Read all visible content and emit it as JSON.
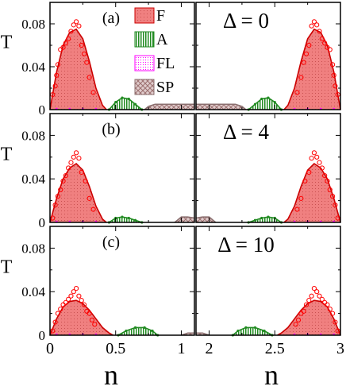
{
  "chart_data": {
    "type": "area",
    "y_axis_label": "T",
    "x_axis_label": "n",
    "ylim": [
      0,
      0.1
    ],
    "y_ticks": [
      "0",
      "0.04",
      "0.08"
    ],
    "x_ticks_left": [
      "0",
      "0.5",
      "1"
    ],
    "x_ticks_right": [
      "2",
      "2.5",
      "3"
    ],
    "xlim_left": [
      0,
      1.1
    ],
    "xlim_right": [
      1.9,
      3.0
    ],
    "legend": [
      {
        "name": "F",
        "color": "#f08080"
      },
      {
        "name": "A",
        "color": "#228b22"
      },
      {
        "name": "FL",
        "color": "#ff00ff"
      },
      {
        "name": "SP",
        "color": "#bc8f8f"
      }
    ],
    "rows": [
      {
        "panel_label": "(a)",
        "delta_label": "Δ = 0",
        "F_curve_left": [
          [
            0,
            0
          ],
          [
            0.05,
            0.035
          ],
          [
            0.1,
            0.06
          ],
          [
            0.15,
            0.072
          ],
          [
            0.2,
            0.075
          ],
          [
            0.25,
            0.066
          ],
          [
            0.3,
            0.045
          ],
          [
            0.35,
            0.02
          ],
          [
            0.4,
            0.004
          ],
          [
            0.43,
            0
          ]
        ],
        "A_curve_left": [
          [
            0.45,
            0
          ],
          [
            0.5,
            0.007
          ],
          [
            0.55,
            0.011
          ],
          [
            0.6,
            0.01
          ],
          [
            0.65,
            0.005
          ],
          [
            0.7,
            0
          ]
        ],
        "SP_curve_left": [
          [
            0.72,
            0
          ],
          [
            0.75,
            0.003
          ],
          [
            0.8,
            0.005
          ],
          [
            0.9,
            0.005
          ],
          [
            1.0,
            0.005
          ],
          [
            1.05,
            0.005
          ],
          [
            1.1,
            0.005
          ]
        ],
        "F_points_left": [
          [
            0.02,
            0.014
          ],
          [
            0.04,
            0.022
          ],
          [
            0.05,
            0.032
          ],
          [
            0.06,
            0.042
          ],
          [
            0.08,
            0.056
          ],
          [
            0.1,
            0.058
          ],
          [
            0.12,
            0.062
          ],
          [
            0.14,
            0.066
          ],
          [
            0.16,
            0.073
          ],
          [
            0.18,
            0.079
          ],
          [
            0.2,
            0.082
          ],
          [
            0.22,
            0.078
          ],
          [
            0.24,
            0.06
          ],
          [
            0.26,
            0.052
          ],
          [
            0.28,
            0.044
          ],
          [
            0.3,
            0.03
          ],
          [
            0.33,
            0.016
          ]
        ],
        "F_curve_right": [
          [
            2.57,
            0
          ],
          [
            2.6,
            0.004
          ],
          [
            2.65,
            0.02
          ],
          [
            2.7,
            0.045
          ],
          [
            2.75,
            0.066
          ],
          [
            2.8,
            0.075
          ],
          [
            2.85,
            0.072
          ],
          [
            2.9,
            0.06
          ],
          [
            2.95,
            0.035
          ],
          [
            3.0,
            0
          ]
        ],
        "A_curve_right": [
          [
            2.3,
            0
          ],
          [
            2.35,
            0.005
          ],
          [
            2.4,
            0.01
          ],
          [
            2.45,
            0.011
          ],
          [
            2.5,
            0.007
          ],
          [
            2.55,
            0
          ]
        ],
        "SP_curve_right": [
          [
            1.9,
            0.005
          ],
          [
            1.95,
            0.005
          ],
          [
            2.0,
            0.005
          ],
          [
            2.1,
            0.005
          ],
          [
            2.2,
            0.005
          ],
          [
            2.25,
            0.003
          ],
          [
            2.28,
            0
          ]
        ],
        "F_points_right": [
          [
            2.67,
            0.016
          ],
          [
            2.7,
            0.03
          ],
          [
            2.72,
            0.044
          ],
          [
            2.74,
            0.052
          ],
          [
            2.76,
            0.06
          ],
          [
            2.78,
            0.078
          ],
          [
            2.8,
            0.082
          ],
          [
            2.82,
            0.079
          ],
          [
            2.84,
            0.073
          ],
          [
            2.86,
            0.066
          ],
          [
            2.88,
            0.062
          ],
          [
            2.9,
            0.058
          ],
          [
            2.92,
            0.056
          ],
          [
            2.94,
            0.042
          ],
          [
            2.95,
            0.032
          ],
          [
            2.96,
            0.022
          ],
          [
            2.98,
            0.014
          ]
        ]
      },
      {
        "panel_label": "(b)",
        "delta_label": "Δ = 4",
        "F_curve_left": [
          [
            0,
            0
          ],
          [
            0.05,
            0.022
          ],
          [
            0.1,
            0.04
          ],
          [
            0.15,
            0.05
          ],
          [
            0.2,
            0.054
          ],
          [
            0.25,
            0.048
          ],
          [
            0.3,
            0.033
          ],
          [
            0.35,
            0.015
          ],
          [
            0.4,
            0.003
          ],
          [
            0.43,
            0
          ]
        ],
        "A_curve_left": [
          [
            0.45,
            0
          ],
          [
            0.5,
            0.004
          ],
          [
            0.55,
            0.005
          ],
          [
            0.6,
            0.004
          ],
          [
            0.65,
            0.002
          ],
          [
            0.7,
            0
          ]
        ],
        "SP_curve_left": [
          [
            0.95,
            0
          ],
          [
            1.0,
            0.005
          ],
          [
            1.05,
            0.005
          ],
          [
            1.1,
            0.004
          ]
        ],
        "F_points_left": [
          [
            0.02,
            0.004
          ],
          [
            0.04,
            0.016
          ],
          [
            0.06,
            0.024
          ],
          [
            0.08,
            0.03
          ],
          [
            0.1,
            0.038
          ],
          [
            0.12,
            0.043
          ],
          [
            0.14,
            0.05
          ],
          [
            0.16,
            0.055
          ],
          [
            0.18,
            0.06
          ],
          [
            0.2,
            0.064
          ],
          [
            0.22,
            0.059
          ],
          [
            0.24,
            0.046
          ],
          [
            0.27,
            0.038
          ],
          [
            0.3,
            0.022
          ],
          [
            0.33,
            0.012
          ]
        ],
        "F_curve_right": [
          [
            2.57,
            0
          ],
          [
            2.6,
            0.003
          ],
          [
            2.65,
            0.015
          ],
          [
            2.7,
            0.033
          ],
          [
            2.75,
            0.048
          ],
          [
            2.8,
            0.054
          ],
          [
            2.85,
            0.05
          ],
          [
            2.9,
            0.04
          ],
          [
            2.95,
            0.022
          ],
          [
            3.0,
            0
          ]
        ],
        "A_curve_right": [
          [
            2.3,
            0
          ],
          [
            2.35,
            0.002
          ],
          [
            2.4,
            0.004
          ],
          [
            2.45,
            0.005
          ],
          [
            2.5,
            0.004
          ],
          [
            2.55,
            0
          ]
        ],
        "SP_curve_right": [
          [
            1.9,
            0.004
          ],
          [
            1.95,
            0.005
          ],
          [
            2.0,
            0.005
          ],
          [
            2.05,
            0
          ]
        ],
        "F_points_right": [
          [
            2.67,
            0.012
          ],
          [
            2.7,
            0.022
          ],
          [
            2.73,
            0.038
          ],
          [
            2.76,
            0.046
          ],
          [
            2.78,
            0.059
          ],
          [
            2.8,
            0.064
          ],
          [
            2.82,
            0.06
          ],
          [
            2.84,
            0.055
          ],
          [
            2.86,
            0.05
          ],
          [
            2.88,
            0.043
          ],
          [
            2.9,
            0.038
          ],
          [
            2.92,
            0.03
          ],
          [
            2.94,
            0.024
          ],
          [
            2.96,
            0.016
          ],
          [
            2.98,
            0.004
          ]
        ]
      },
      {
        "panel_label": "(c)",
        "delta_label": "Δ = 10",
        "F_curve_left": [
          [
            0,
            0
          ],
          [
            0.05,
            0.015
          ],
          [
            0.1,
            0.026
          ],
          [
            0.15,
            0.031
          ],
          [
            0.2,
            0.032
          ],
          [
            0.25,
            0.029
          ],
          [
            0.3,
            0.023
          ],
          [
            0.35,
            0.015
          ],
          [
            0.4,
            0.007
          ],
          [
            0.45,
            0.002
          ],
          [
            0.48,
            0
          ]
        ],
        "A_curve_left": [
          [
            0.52,
            0
          ],
          [
            0.58,
            0.004
          ],
          [
            0.65,
            0.007
          ],
          [
            0.72,
            0.007
          ],
          [
            0.78,
            0.004
          ],
          [
            0.82,
            0
          ]
        ],
        "SP_curve_left": [
          [
            1.0,
            0
          ],
          [
            1.05,
            0.002
          ],
          [
            1.1,
            0.002
          ]
        ],
        "F_points_left": [
          [
            0.02,
            0.004
          ],
          [
            0.04,
            0.012
          ],
          [
            0.06,
            0.02
          ],
          [
            0.08,
            0.024
          ],
          [
            0.1,
            0.028
          ],
          [
            0.12,
            0.03
          ],
          [
            0.14,
            0.033
          ],
          [
            0.16,
            0.036
          ],
          [
            0.18,
            0.04
          ],
          [
            0.2,
            0.043
          ],
          [
            0.22,
            0.036
          ],
          [
            0.24,
            0.032
          ],
          [
            0.26,
            0.028
          ],
          [
            0.28,
            0.022
          ],
          [
            0.3,
            0.02
          ],
          [
            0.32,
            0.014
          ],
          [
            0.34,
            0.01
          ]
        ],
        "F_curve_right": [
          [
            2.52,
            0
          ],
          [
            2.55,
            0.002
          ],
          [
            2.6,
            0.007
          ],
          [
            2.65,
            0.015
          ],
          [
            2.7,
            0.023
          ],
          [
            2.75,
            0.029
          ],
          [
            2.8,
            0.032
          ],
          [
            2.85,
            0.031
          ],
          [
            2.9,
            0.026
          ],
          [
            2.95,
            0.015
          ],
          [
            3.0,
            0
          ]
        ],
        "A_curve_right": [
          [
            2.18,
            0
          ],
          [
            2.22,
            0.004
          ],
          [
            2.28,
            0.007
          ],
          [
            2.35,
            0.007
          ],
          [
            2.42,
            0.004
          ],
          [
            2.48,
            0
          ]
        ],
        "SP_curve_right": [
          [
            1.9,
            0.002
          ],
          [
            1.95,
            0.002
          ],
          [
            2.0,
            0
          ]
        ],
        "F_points_right": [
          [
            2.66,
            0.01
          ],
          [
            2.68,
            0.014
          ],
          [
            2.7,
            0.02
          ],
          [
            2.72,
            0.022
          ],
          [
            2.74,
            0.028
          ],
          [
            2.76,
            0.032
          ],
          [
            2.78,
            0.036
          ],
          [
            2.8,
            0.043
          ],
          [
            2.82,
            0.04
          ],
          [
            2.84,
            0.036
          ],
          [
            2.86,
            0.033
          ],
          [
            2.88,
            0.03
          ],
          [
            2.9,
            0.028
          ],
          [
            2.92,
            0.024
          ],
          [
            2.94,
            0.02
          ],
          [
            2.96,
            0.012
          ],
          [
            2.98,
            0.004
          ]
        ]
      }
    ]
  }
}
